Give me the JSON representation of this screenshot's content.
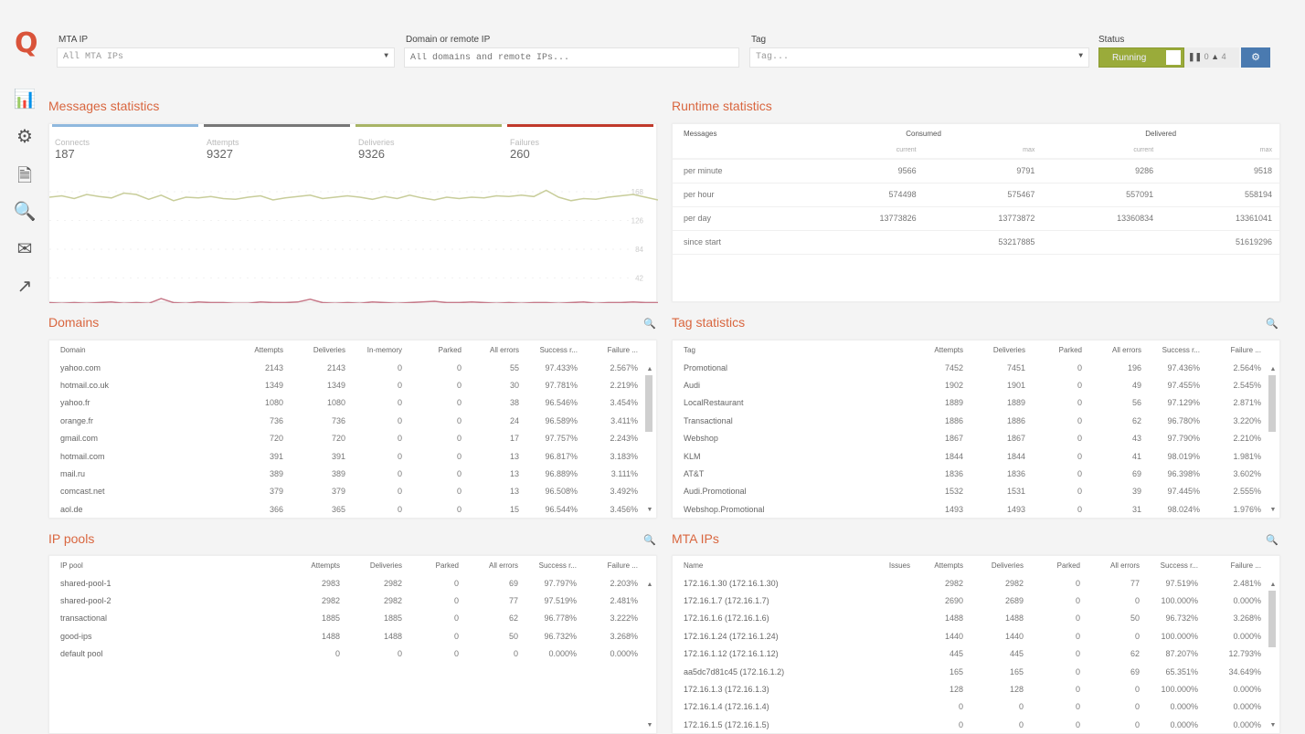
{
  "app": {
    "logo": "Q"
  },
  "sidebar": [
    {
      "icon": "bar-chart-icon",
      "glyph": "📊"
    },
    {
      "icon": "gears-icon",
      "glyph": "⚙"
    },
    {
      "icon": "document-icon",
      "glyph": "🗎"
    },
    {
      "icon": "search-log-icon",
      "glyph": "🔍"
    },
    {
      "icon": "mail-inbox-icon",
      "glyph": "✉"
    },
    {
      "icon": "export-icon",
      "glyph": "↗"
    }
  ],
  "filters": {
    "mta_ip": {
      "label": "MTA IP",
      "value": "All MTA IPs"
    },
    "domain": {
      "label": "Domain or remote IP",
      "placeholder": "All domains and remote IPs..."
    },
    "tag": {
      "label": "Tag",
      "placeholder": "Tag..."
    },
    "status": {
      "label": "Status",
      "state": "Running",
      "paused": "0",
      "warnings": "4"
    }
  },
  "messages": {
    "title": "Messages statistics",
    "stats": [
      {
        "label": "Connects",
        "value": "187",
        "color": "#8fb8de"
      },
      {
        "label": "Attempts",
        "value": "9327",
        "color": "#777777"
      },
      {
        "label": "Deliveries",
        "value": "9326",
        "color": "#a8b465"
      },
      {
        "label": "Failures",
        "value": "260",
        "color": "#c0392b"
      }
    ],
    "y_ticks": [
      "168",
      "126",
      "84",
      "42"
    ]
  },
  "chart_data": {
    "type": "line",
    "ylim": [
      0,
      180
    ],
    "y_ticks": [
      168,
      126,
      84,
      42
    ],
    "series": [
      {
        "name": "Deliveries",
        "color": "#c8cd9a",
        "values": [
          160,
          162,
          158,
          164,
          161,
          159,
          166,
          164,
          157,
          163,
          155,
          160,
          159,
          161,
          158,
          157,
          160,
          162,
          156,
          159,
          161,
          163,
          158,
          160,
          162,
          160,
          157,
          161,
          158,
          163,
          159,
          156,
          160,
          158,
          160,
          159,
          162,
          161,
          163,
          161,
          170,
          160,
          155,
          158,
          157,
          160,
          162,
          164,
          160,
          156
        ]
      },
      {
        "name": "Failures",
        "color": "#c77a8a",
        "values": [
          6,
          5,
          6,
          5,
          6,
          7,
          5,
          6,
          5,
          12,
          6,
          5,
          7,
          6,
          6,
          5,
          5,
          7,
          6,
          6,
          7,
          11,
          6,
          5,
          6,
          5,
          7,
          6,
          5,
          6,
          7,
          8,
          6,
          6,
          7,
          6,
          5,
          6,
          5,
          6,
          6,
          5,
          6,
          7,
          5,
          6,
          6,
          7,
          6,
          6
        ]
      }
    ]
  },
  "runtime": {
    "title": "Runtime statistics",
    "headers": {
      "messages": "Messages",
      "consumed": "Consumed",
      "delivered": "Delivered",
      "current": "current",
      "max": "max"
    },
    "rows": [
      [
        "per minute",
        "9566",
        "9791",
        "9286",
        "9518"
      ],
      [
        "per hour",
        "574498",
        "575467",
        "557091",
        "558194"
      ],
      [
        "per day",
        "13773826",
        "13773872",
        "13360834",
        "13361041"
      ],
      [
        "since start",
        "",
        "53217885",
        "",
        "51619296"
      ]
    ]
  },
  "domains": {
    "title": "Domains",
    "columns": [
      "Domain",
      "Attempts",
      "Deliveries",
      "In-memory",
      "Parked",
      "All errors",
      "Success r...",
      "Failure ..."
    ],
    "rows": [
      [
        "yahoo.com",
        "2143",
        "2143",
        "0",
        "0",
        "55",
        "97.433%",
        "2.567%"
      ],
      [
        "hotmail.co.uk",
        "1349",
        "1349",
        "0",
        "0",
        "30",
        "97.781%",
        "2.219%"
      ],
      [
        "yahoo.fr",
        "1080",
        "1080",
        "0",
        "0",
        "38",
        "96.546%",
        "3.454%"
      ],
      [
        "orange.fr",
        "736",
        "736",
        "0",
        "0",
        "24",
        "96.589%",
        "3.411%"
      ],
      [
        "gmail.com",
        "720",
        "720",
        "0",
        "0",
        "17",
        "97.757%",
        "2.243%"
      ],
      [
        "hotmail.com",
        "391",
        "391",
        "0",
        "0",
        "13",
        "96.817%",
        "3.183%"
      ],
      [
        "mail.ru",
        "389",
        "389",
        "0",
        "0",
        "13",
        "96.889%",
        "3.111%"
      ],
      [
        "comcast.net",
        "379",
        "379",
        "0",
        "0",
        "13",
        "96.508%",
        "3.492%"
      ],
      [
        "aol.de",
        "366",
        "365",
        "0",
        "0",
        "15",
        "96.544%",
        "3.456%"
      ]
    ]
  },
  "tags": {
    "title": "Tag statistics",
    "columns": [
      "Tag",
      "Attempts",
      "Deliveries",
      "Parked",
      "All errors",
      "Success r...",
      "Failure ..."
    ],
    "rows": [
      [
        "Promotional",
        "7452",
        "7451",
        "0",
        "196",
        "97.436%",
        "2.564%"
      ],
      [
        "Audi",
        "1902",
        "1901",
        "0",
        "49",
        "97.455%",
        "2.545%"
      ],
      [
        "LocalRestaurant",
        "1889",
        "1889",
        "0",
        "56",
        "97.129%",
        "2.871%"
      ],
      [
        "Transactional",
        "1886",
        "1886",
        "0",
        "62",
        "96.780%",
        "3.220%"
      ],
      [
        "Webshop",
        "1867",
        "1867",
        "0",
        "43",
        "97.790%",
        "2.210%"
      ],
      [
        "KLM",
        "1844",
        "1844",
        "0",
        "41",
        "98.019%",
        "1.981%"
      ],
      [
        "AT&T",
        "1836",
        "1836",
        "0",
        "69",
        "96.398%",
        "3.602%"
      ],
      [
        "Audi.Promotional",
        "1532",
        "1531",
        "0",
        "39",
        "97.445%",
        "2.555%"
      ],
      [
        "Webshop.Promotional",
        "1493",
        "1493",
        "0",
        "31",
        "98.024%",
        "1.976%"
      ]
    ]
  },
  "ippools": {
    "title": "IP pools",
    "columns": [
      "IP pool",
      "Attempts",
      "Deliveries",
      "Parked",
      "All errors",
      "Success r...",
      "Failure ..."
    ],
    "rows": [
      [
        "shared-pool-1",
        "2983",
        "2982",
        "0",
        "69",
        "97.797%",
        "2.203%"
      ],
      [
        "shared-pool-2",
        "2982",
        "2982",
        "0",
        "77",
        "97.519%",
        "2.481%"
      ],
      [
        "transactional",
        "1885",
        "1885",
        "0",
        "62",
        "96.778%",
        "3.222%"
      ],
      [
        "good-ips",
        "1488",
        "1488",
        "0",
        "50",
        "96.732%",
        "3.268%"
      ],
      [
        "default pool",
        "0",
        "0",
        "0",
        "0",
        "0.000%",
        "0.000%"
      ]
    ]
  },
  "mtaips": {
    "title": "MTA IPs",
    "columns": [
      "Name",
      "Issues",
      "Attempts",
      "Deliveries",
      "Parked",
      "All errors",
      "Success r...",
      "Failure ..."
    ],
    "rows": [
      [
        "172.16.1.30 (172.16.1.30)",
        "",
        "2982",
        "2982",
        "0",
        "77",
        "97.519%",
        "2.481%"
      ],
      [
        "172.16.1.7 (172.16.1.7)",
        "",
        "2690",
        "2689",
        "0",
        "0",
        "100.000%",
        "0.000%"
      ],
      [
        "172.16.1.6 (172.16.1.6)",
        "",
        "1488",
        "1488",
        "0",
        "50",
        "96.732%",
        "3.268%"
      ],
      [
        "172.16.1.24 (172.16.1.24)",
        "",
        "1440",
        "1440",
        "0",
        "0",
        "100.000%",
        "0.000%"
      ],
      [
        "172.16.1.12 (172.16.1.12)",
        "",
        "445",
        "445",
        "0",
        "62",
        "87.207%",
        "12.793%"
      ],
      [
        "aa5dc7d81c45 (172.16.1.2)",
        "",
        "165",
        "165",
        "0",
        "69",
        "65.351%",
        "34.649%"
      ],
      [
        "172.16.1.3 (172.16.1.3)",
        "",
        "128",
        "128",
        "0",
        "0",
        "100.000%",
        "0.000%"
      ],
      [
        "172.16.1.4 (172.16.1.4)",
        "",
        "0",
        "0",
        "0",
        "0",
        "0.000%",
        "0.000%"
      ],
      [
        "172.16.1.5 (172.16.1.5)",
        "",
        "0",
        "0",
        "0",
        "0",
        "0.000%",
        "0.000%"
      ]
    ]
  }
}
